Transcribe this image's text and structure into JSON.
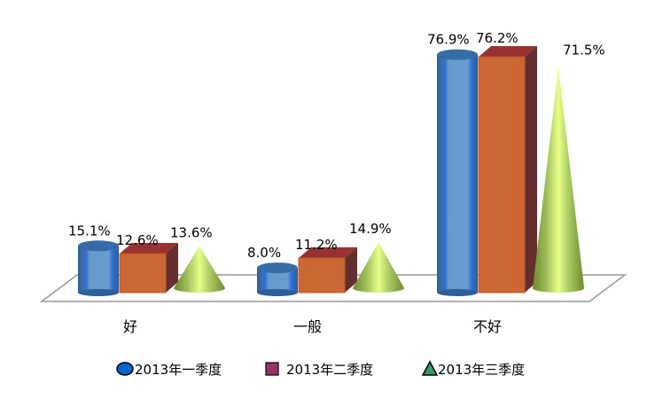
{
  "chart_data": {
    "type": "bar",
    "categories": [
      "好",
      "一般",
      "不好"
    ],
    "series": [
      {
        "name": "2013年一季度",
        "shape": "cylinder",
        "color": "#4F81BD",
        "values": [
          15.1,
          8.0,
          76.9
        ],
        "labels": [
          "15.1%",
          "8.0%",
          "76.9%"
        ]
      },
      {
        "name": "2013年二季度",
        "shape": "box",
        "color": "#C0504D",
        "values": [
          12.6,
          11.2,
          76.2
        ],
        "labels": [
          "12.6%",
          "11.2%",
          "76.2%"
        ]
      },
      {
        "name": "2013年三季度",
        "shape": "cone",
        "color": "#9BBB59",
        "values": [
          13.6,
          14.9,
          71.5
        ],
        "labels": [
          "13.6%",
          "14.9%",
          "71.5%"
        ]
      }
    ],
    "legend_icon_colors": [
      "#0066CC",
      "#993366",
      "#339966"
    ],
    "legend_position": "bottom",
    "ylim": [
      0,
      80
    ],
    "unit": "%",
    "grid": false,
    "three_d": true
  }
}
